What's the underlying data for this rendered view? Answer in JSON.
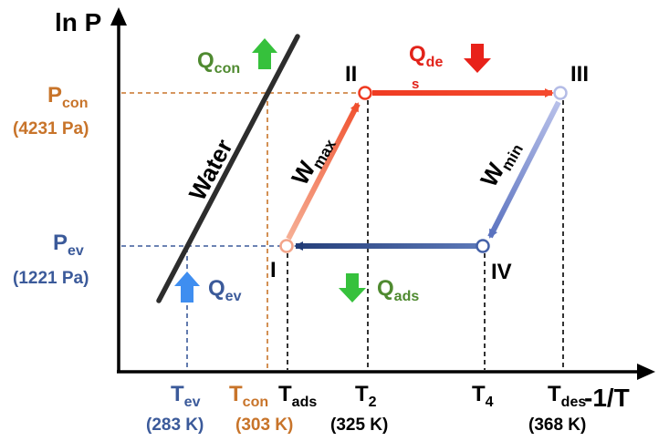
{
  "axes": {
    "y_label": "ln P",
    "x_label": "-1/T"
  },
  "colors": {
    "black": "#000000",
    "orange": "#c8742a",
    "blue": "#3b5a9a",
    "green": "#4f8a30",
    "green_arrow": "#36c13c",
    "red": "#e2231a",
    "red_line": "#f04a2c",
    "salmon": "#f2a07a",
    "blue_line": "#2f4a86",
    "blue_light": "#aab4e2",
    "arrow_blue": "#3f8ef0"
  },
  "water": {
    "label": "Water"
  },
  "pressures": {
    "con": {
      "symbol": "P",
      "sub": "con",
      "value": "(4231 Pa)"
    },
    "ev": {
      "symbol": "P",
      "sub": "ev",
      "value": "(1221 Pa)"
    }
  },
  "temperatures": {
    "ev": {
      "symbol": "T",
      "sub": "ev",
      "value": "(283 K)"
    },
    "con": {
      "symbol": "T",
      "sub": "con",
      "value": "(303 K)"
    },
    "ads": {
      "symbol": "T",
      "sub": "ads"
    },
    "t2": {
      "symbol": "T",
      "sub": "2",
      "value": "(325 K)"
    },
    "t4": {
      "symbol": "T",
      "sub": "4"
    },
    "des": {
      "symbol": "T",
      "sub": "des",
      "value": "(368 K)"
    }
  },
  "states": [
    "I",
    "II",
    "III",
    "IV"
  ],
  "heats": {
    "con": {
      "symbol": "Q",
      "sub": "con"
    },
    "de": {
      "symbol": "Q",
      "sub": "de",
      "sub2": "s"
    },
    "ev": {
      "symbol": "Q",
      "sub": "ev"
    },
    "ads": {
      "symbol": "Q",
      "sub": "ads"
    }
  },
  "work": {
    "max": {
      "symbol": "W",
      "sub": "max"
    },
    "min": {
      "symbol": "W",
      "sub": "min"
    }
  }
}
